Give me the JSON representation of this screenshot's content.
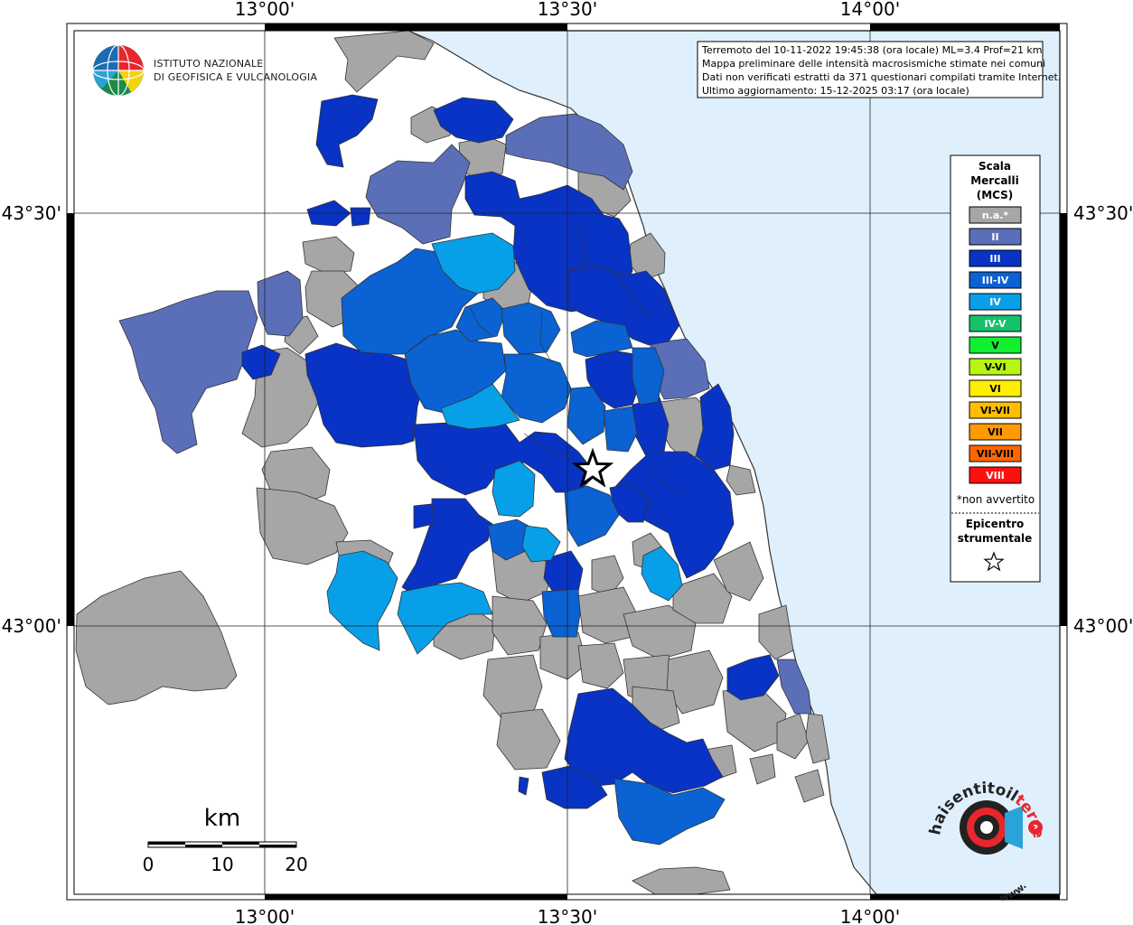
{
  "axes": {
    "top_ticks": [
      "13°00'",
      "13°30'",
      "14°00'"
    ],
    "bottom_ticks": [
      "13°00'",
      "13°30'",
      "14°00'"
    ],
    "left_ticks": [
      "43°30'",
      "43°00'"
    ],
    "right_ticks": [
      "43°30'",
      "43°00'"
    ]
  },
  "institute": {
    "line1": "ISTITUTO NAZIONALE",
    "line2": "DI GEOFISICA E VULCANOLOGIA"
  },
  "info": {
    "line1": "Terremoto del 10-11-2022 19:45:38 (ora locale) ML=3.4 Prof=21 km",
    "line2": "Mappa preliminare delle intensità macrosismiche stimate nei comuni",
    "line3": "Dati non verificati estratti da 371 questionari compilati tramite Internet.",
    "line4": "Ultimo aggiornamento: 15-12-2025 03:17 (ora locale)"
  },
  "legend": {
    "title1": "Scala",
    "title2": "Mercalli",
    "title3": "(MCS)",
    "items": [
      {
        "label": "n.a.*",
        "color": "#a6a6a6"
      },
      {
        "label": "II",
        "color": "#5b6fb8"
      },
      {
        "label": "III",
        "color": "#0833c4"
      },
      {
        "label": "III-IV",
        "color": "#0a62d3"
      },
      {
        "label": "IV",
        "color": "#079fe8"
      },
      {
        "label": "IV-V",
        "color": "#14c26b"
      },
      {
        "label": "V",
        "color": "#10f030"
      },
      {
        "label": "V-VI",
        "color": "#b7f514"
      },
      {
        "label": "VI",
        "color": "#ffee00"
      },
      {
        "label": "VI-VII",
        "color": "#ffbe00"
      },
      {
        "label": "VII",
        "color": "#ff9a00"
      },
      {
        "label": "VII-VIII",
        "color": "#ff6600"
      },
      {
        "label": "VIII",
        "color": "#ff1010"
      }
    ],
    "not_felt_note": "*non avvertito",
    "epicenter1": "Epicentro",
    "epicenter2": "strumentale"
  },
  "scale": {
    "unit": "km",
    "labels": [
      "0",
      "10",
      "20"
    ]
  },
  "hsit_logo": {
    "text_red": "terremoto.it",
    "text_main": "haisentitoil",
    "text_www": "www."
  },
  "colors": {
    "sea": "#dff0fc",
    "na": "#a6a6a6",
    "ii": "#5b6fb8",
    "iii": "#0833c4",
    "iii_iv": "#0a62d3",
    "iv": "#079fe8"
  }
}
